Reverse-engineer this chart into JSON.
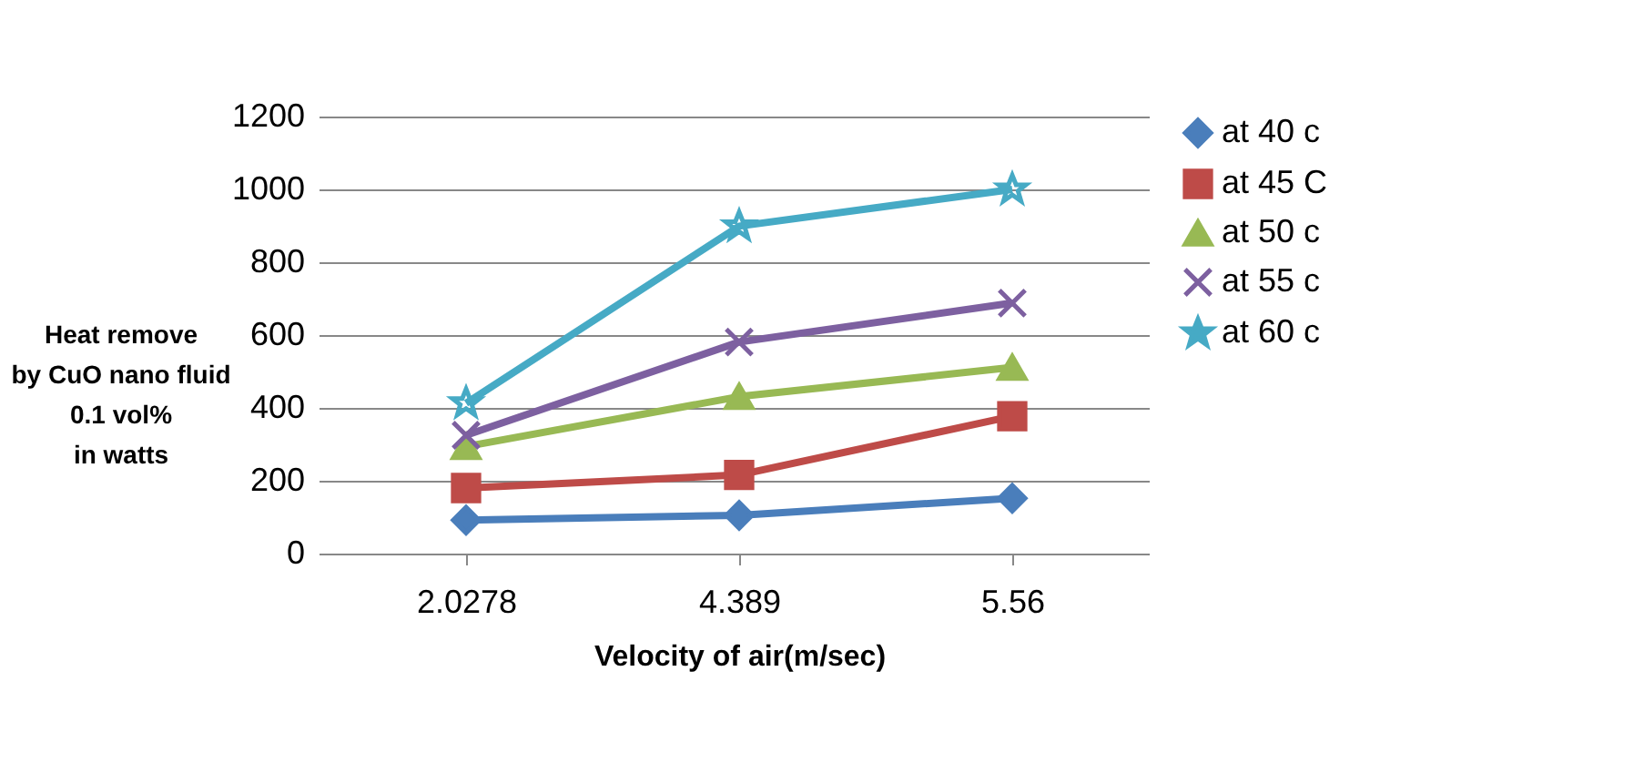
{
  "chart_data": {
    "type": "line",
    "xlabel": "Velocity of air(m/sec)",
    "ylabel": "Heat remove\nby CuO nano fluid\n0.1 vol%\nin watts",
    "categories": [
      "2.0278",
      "4.389",
      "5.56"
    ],
    "series": [
      {
        "name": "at 40 c",
        "color": "#4a7ebb",
        "marker": "diamond",
        "values": [
          92,
          105,
          152
        ]
      },
      {
        "name": "at 45 C",
        "color": "#be4b48",
        "marker": "square",
        "values": [
          180,
          216,
          377
        ]
      },
      {
        "name": "at 50 c",
        "color": "#98b954",
        "marker": "triangle",
        "values": [
          294,
          431,
          511
        ]
      },
      {
        "name": "at 55 c",
        "color": "#7d60a0",
        "marker": "cross",
        "values": [
          325,
          581,
          688
        ]
      },
      {
        "name": "at 60 c",
        "color": "#46aac5",
        "marker": "star",
        "values": [
          413,
          899,
          1000
        ]
      }
    ],
    "ylim": [
      0,
      1200
    ],
    "yticks": [
      0,
      200,
      400,
      600,
      800,
      1000,
      1200
    ],
    "grid": "y",
    "legend": "right"
  }
}
